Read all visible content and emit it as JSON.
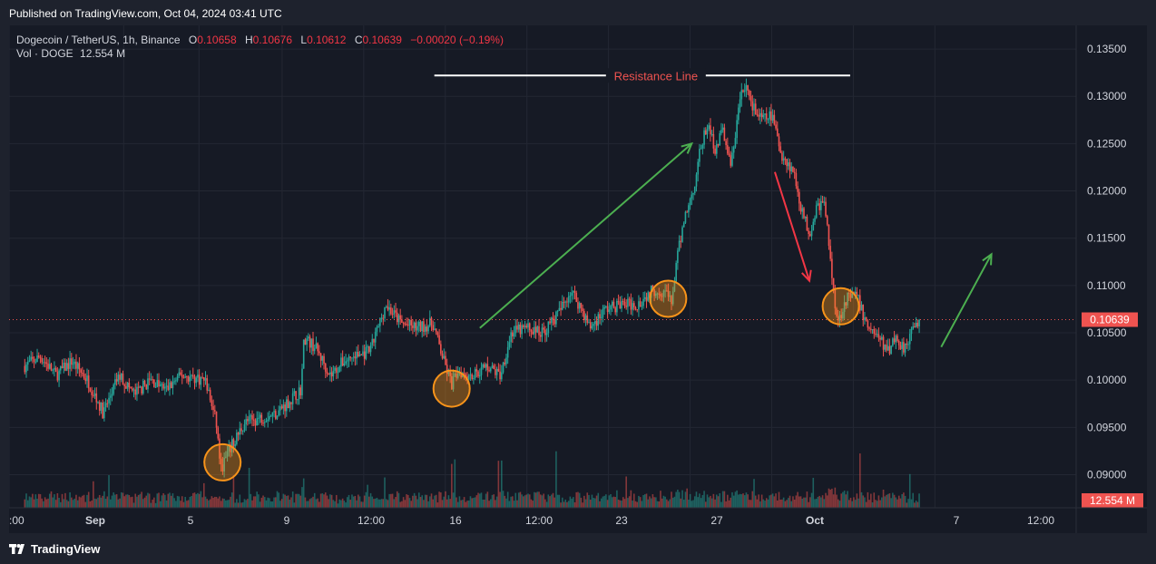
{
  "header": {
    "published_text": "Published on TradingView.com, Oct 04, 2024 03:41 UTC"
  },
  "legend": {
    "symbol": "Dogecoin / TetherUS, 1h, Binance",
    "open_label": "O",
    "open": "0.10658",
    "high_label": "H",
    "high": "0.10676",
    "low_label": "L",
    "low": "0.10612",
    "close_label": "C",
    "close": "0.10639",
    "change": "−0.00020 (−0.19%)",
    "vol_label": "Vol · DOGE",
    "vol_value": "12.554 M"
  },
  "footer": {
    "brand": "TradingView"
  },
  "colors": {
    "up": "#26a69a",
    "down": "#ef5350",
    "background": "#161a25",
    "grid": "#232733",
    "circle": "#f7931a",
    "arrow_up": "#4caf50",
    "arrow_down": "#f23645"
  },
  "chart_data": {
    "type": "candlestick",
    "symbol": "DOGEUSDT",
    "interval": "1h",
    "x_ticks": [
      ":00",
      "Sep",
      "5",
      "9",
      "12:00",
      "16",
      "12:00",
      "23",
      "27",
      "Oct",
      "7",
      "12:00"
    ],
    "y_ticks": [
      0.09,
      0.095,
      0.1,
      0.105,
      0.11,
      0.115,
      0.12,
      0.125,
      0.13,
      0.135
    ],
    "y_tick_labels": [
      "0.09000",
      "0.09500",
      "0.10000",
      "0.10500",
      "0.11000",
      "0.11500",
      "0.12000",
      "0.12500",
      "0.13000",
      "0.13500"
    ],
    "ylim": [
      0.0865,
      0.1375
    ],
    "last_price": 0.10639,
    "last_price_label": "0.10639",
    "volume_label": "12.554 M",
    "price_path": [
      {
        "t": 0.0,
        "p": 0.1015
      },
      {
        "t": 1.0,
        "p": 0.1025
      },
      {
        "t": 2.0,
        "p": 0.1005
      },
      {
        "t": 3.0,
        "p": 0.102
      },
      {
        "t": 4.0,
        "p": 0.1
      },
      {
        "t": 5.0,
        "p": 0.0965
      },
      {
        "t": 6.0,
        "p": 0.1005
      },
      {
        "t": 7.0,
        "p": 0.0985
      },
      {
        "t": 8.0,
        "p": 0.1
      },
      {
        "t": 9.0,
        "p": 0.099
      },
      {
        "t": 10.0,
        "p": 0.1005
      },
      {
        "t": 11.5,
        "p": 0.1
      },
      {
        "t": 12.2,
        "p": 0.0955
      },
      {
        "t": 12.5,
        "p": 0.0905
      },
      {
        "t": 13.0,
        "p": 0.0925
      },
      {
        "t": 14.0,
        "p": 0.0955
      },
      {
        "t": 15.0,
        "p": 0.096
      },
      {
        "t": 16.0,
        "p": 0.0965
      },
      {
        "t": 17.0,
        "p": 0.098
      },
      {
        "t": 17.6,
        "p": 0.099
      },
      {
        "t": 17.8,
        "p": 0.1045
      },
      {
        "t": 18.5,
        "p": 0.1035
      },
      {
        "t": 19.5,
        "p": 0.1005
      },
      {
        "t": 20.3,
        "p": 0.102
      },
      {
        "t": 21.0,
        "p": 0.1025
      },
      {
        "t": 22.0,
        "p": 0.103
      },
      {
        "t": 23.0,
        "p": 0.108
      },
      {
        "t": 24.0,
        "p": 0.106
      },
      {
        "t": 25.0,
        "p": 0.1055
      },
      {
        "t": 26.0,
        "p": 0.106
      },
      {
        "t": 26.7,
        "p": 0.102
      },
      {
        "t": 27.2,
        "p": 0.0995
      },
      {
        "t": 27.6,
        "p": 0.101
      },
      {
        "t": 28.5,
        "p": 0.1005
      },
      {
        "t": 29.5,
        "p": 0.1015
      },
      {
        "t": 30.3,
        "p": 0.1005
      },
      {
        "t": 31.0,
        "p": 0.105
      },
      {
        "t": 32.0,
        "p": 0.1055
      },
      {
        "t": 33.0,
        "p": 0.105
      },
      {
        "t": 34.0,
        "p": 0.107
      },
      {
        "t": 34.8,
        "p": 0.1095
      },
      {
        "t": 35.5,
        "p": 0.1075
      },
      {
        "t": 36.0,
        "p": 0.1055
      },
      {
        "t": 37.0,
        "p": 0.1075
      },
      {
        "t": 38.0,
        "p": 0.108
      },
      {
        "t": 39.0,
        "p": 0.108
      },
      {
        "t": 40.0,
        "p": 0.1095
      },
      {
        "t": 40.8,
        "p": 0.1095
      },
      {
        "t": 41.2,
        "p": 0.108
      },
      {
        "t": 41.5,
        "p": 0.112
      },
      {
        "t": 42.0,
        "p": 0.117
      },
      {
        "t": 42.6,
        "p": 0.12
      },
      {
        "t": 43.0,
        "p": 0.124
      },
      {
        "t": 43.5,
        "p": 0.127
      },
      {
        "t": 44.0,
        "p": 0.1245
      },
      {
        "t": 44.5,
        "p": 0.1265
      },
      {
        "t": 45.0,
        "p": 0.1225
      },
      {
        "t": 45.6,
        "p": 0.13
      },
      {
        "t": 46.0,
        "p": 0.131
      },
      {
        "t": 46.5,
        "p": 0.1285
      },
      {
        "t": 47.0,
        "p": 0.1275
      },
      {
        "t": 47.6,
        "p": 0.128
      },
      {
        "t": 48.2,
        "p": 0.124
      },
      {
        "t": 49.0,
        "p": 0.122
      },
      {
        "t": 49.5,
        "p": 0.118
      },
      {
        "t": 50.0,
        "p": 0.1155
      },
      {
        "t": 50.5,
        "p": 0.1185
      },
      {
        "t": 51.0,
        "p": 0.1185
      },
      {
        "t": 51.4,
        "p": 0.1115
      },
      {
        "t": 51.8,
        "p": 0.106
      },
      {
        "t": 52.3,
        "p": 0.1085
      },
      {
        "t": 53.0,
        "p": 0.109
      },
      {
        "t": 53.6,
        "p": 0.106
      },
      {
        "t": 54.2,
        "p": 0.105
      },
      {
        "t": 55.0,
        "p": 0.103
      },
      {
        "t": 55.4,
        "p": 0.1045
      },
      {
        "t": 56.0,
        "p": 0.1035
      },
      {
        "t": 56.5,
        "p": 0.105
      },
      {
        "t": 57.0,
        "p": 0.1064
      }
    ],
    "annotations": {
      "resistance_label": "Resistance Line",
      "resistance_level": 0.1322,
      "circles": [
        {
          "t": 12.6,
          "p": 0.0913
        },
        {
          "t": 27.2,
          "p": 0.0991
        },
        {
          "t": 41.0,
          "p": 0.1086
        },
        {
          "t": 52.0,
          "p": 0.1078
        }
      ],
      "arrows": [
        {
          "from": [
            29.0,
            0.1055
          ],
          "to": [
            42.5,
            0.125
          ],
          "color": "up"
        },
        {
          "from": [
            47.8,
            0.122
          ],
          "to": [
            50.0,
            0.1105
          ],
          "color": "down"
        },
        {
          "from": [
            58.4,
            0.1035
          ],
          "to": [
            61.6,
            0.1133
          ],
          "color": "up"
        }
      ]
    }
  }
}
